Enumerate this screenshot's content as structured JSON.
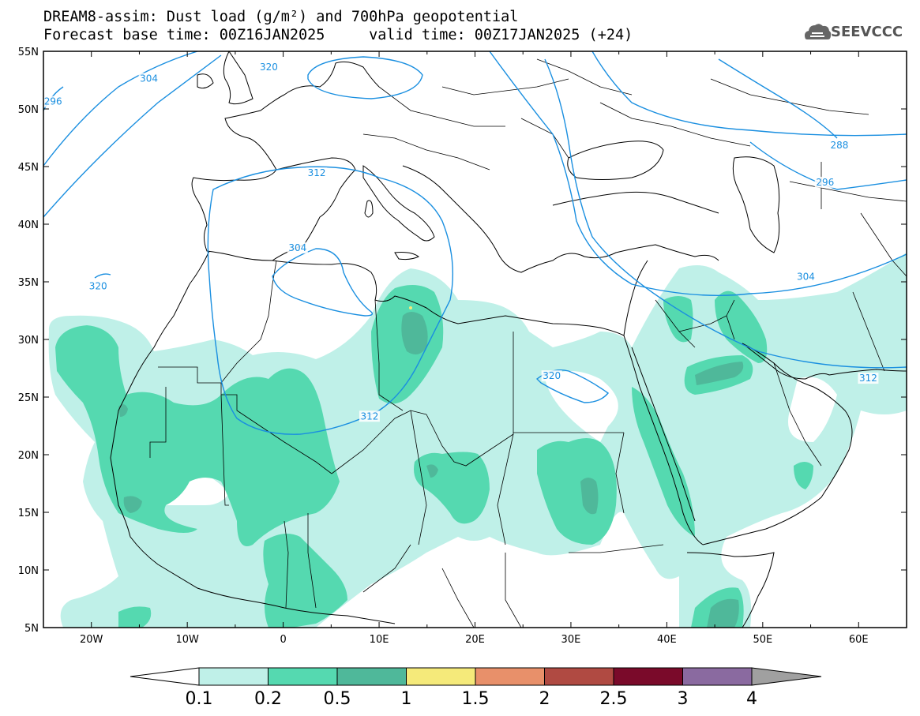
{
  "header": {
    "line1": "DREAM8-assim: Dust load (g/m²) and 700hPa geopotential",
    "line2": "Forecast base time: 00Z16JAN2025     valid time: 00Z17JAN2025 (+24)"
  },
  "logo": {
    "text": "SEEVCCC",
    "icon": "cloud-logo-icon"
  },
  "map": {
    "lon_range": [
      -25,
      65
    ],
    "lat_range": [
      5,
      55
    ],
    "x_ticks": [
      "20W",
      "10W",
      "0",
      "10E",
      "20E",
      "30E",
      "40E",
      "50E",
      "60E"
    ],
    "x_tick_values": [
      -20,
      -10,
      0,
      10,
      20,
      30,
      40,
      50,
      60
    ],
    "y_ticks": [
      "55N",
      "50N",
      "45N",
      "40N",
      "35N",
      "30N",
      "25N",
      "20N",
      "15N",
      "10N",
      "5N"
    ],
    "y_tick_values": [
      55,
      50,
      45,
      40,
      35,
      30,
      25,
      20,
      15,
      10,
      5
    ]
  },
  "contours": {
    "color": "#1a8fe0",
    "labels": [
      {
        "text": "320",
        "lon": -1.5,
        "lat": 53.5
      },
      {
        "text": "304",
        "lon": -14,
        "lat": 52.5
      },
      {
        "text": "296",
        "lon": -24,
        "lat": 50.5
      },
      {
        "text": "312",
        "lon": 3.5,
        "lat": 44.3
      },
      {
        "text": "304",
        "lon": 1.5,
        "lat": 37.8
      },
      {
        "text": "320",
        "lon": -19.3,
        "lat": 34.5
      },
      {
        "text": "312",
        "lon": 9,
        "lat": 23.2
      },
      {
        "text": "320",
        "lon": 28,
        "lat": 26.7
      },
      {
        "text": "288",
        "lon": 58,
        "lat": 46.7
      },
      {
        "text": "296",
        "lon": 56.5,
        "lat": 43.5
      },
      {
        "text": "304",
        "lon": 54.5,
        "lat": 35.3
      },
      {
        "text": "312",
        "lon": 61,
        "lat": 26.5
      }
    ]
  },
  "colorbar": {
    "colors": [
      "#bff0e8",
      "#55d9b0",
      "#4fb89a",
      "#f5ea7a",
      "#e8906a",
      "#b04a42",
      "#7a0a2a",
      "#8a6aa0",
      "#a0a0a0"
    ],
    "labels": [
      "0.1",
      "0.2",
      "0.5",
      "1",
      "1.5",
      "2",
      "2.5",
      "3",
      "4"
    ]
  }
}
